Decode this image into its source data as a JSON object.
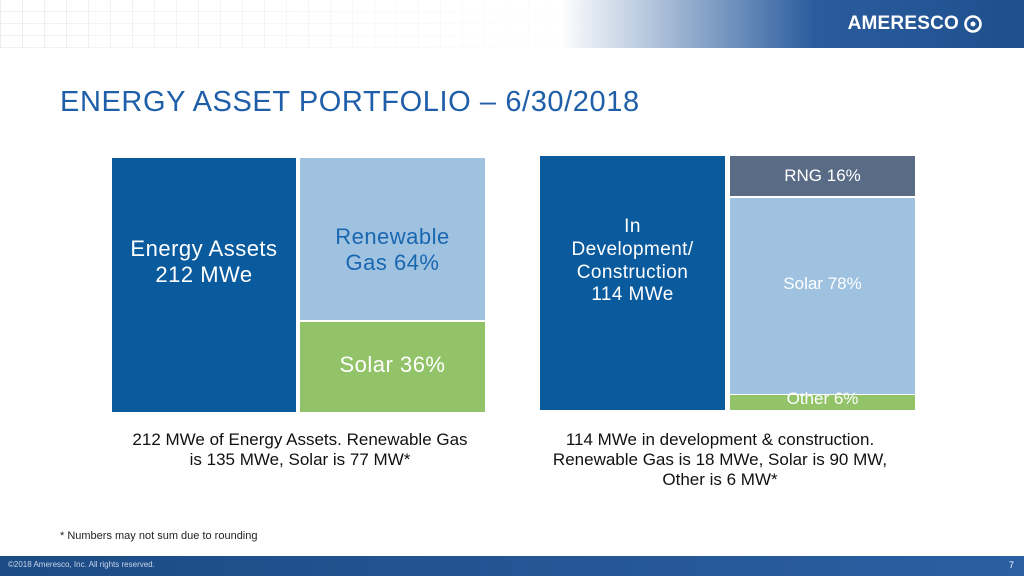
{
  "header": {
    "logo_text": "AMERESCO"
  },
  "title": "ENERGY ASSET PORTFOLIO – 6/30/2018",
  "left_chart": {
    "main_label_line1": "Energy Assets",
    "main_label_line2": "212 MWe",
    "renewable_line1": "Renewable",
    "renewable_line2": "Gas 64%",
    "solar_label": "Solar 36%",
    "caption_line1": "212 MWe of Energy Assets. Renewable Gas",
    "caption_line2": "is 135 MWe, Solar is 77 MW*"
  },
  "right_chart": {
    "main_line1": "In",
    "main_line2": "Development/",
    "main_line3": "Construction",
    "main_line4": "114 MWe",
    "rng_label": "RNG 16%",
    "solar_label": "Solar 78%",
    "other_label": "Other 6%",
    "caption_line1": "114 MWe in development & construction.",
    "caption_line2": "Renewable Gas is 18 MWe, Solar is 90 MW,",
    "caption_line3": "Other is 6 MW*"
  },
  "footnote": "* Numbers may not sum due to rounding",
  "footer": {
    "copyright": "©2018 Ameresco, Inc. All rights reserved.",
    "page_number": "7"
  },
  "colors": {
    "dark_blue": "#0a5a9e",
    "light_blue": "#9ec2e0",
    "green": "#92c369",
    "slate": "#5a6b86",
    "title_blue": "#1f5ea8"
  }
}
